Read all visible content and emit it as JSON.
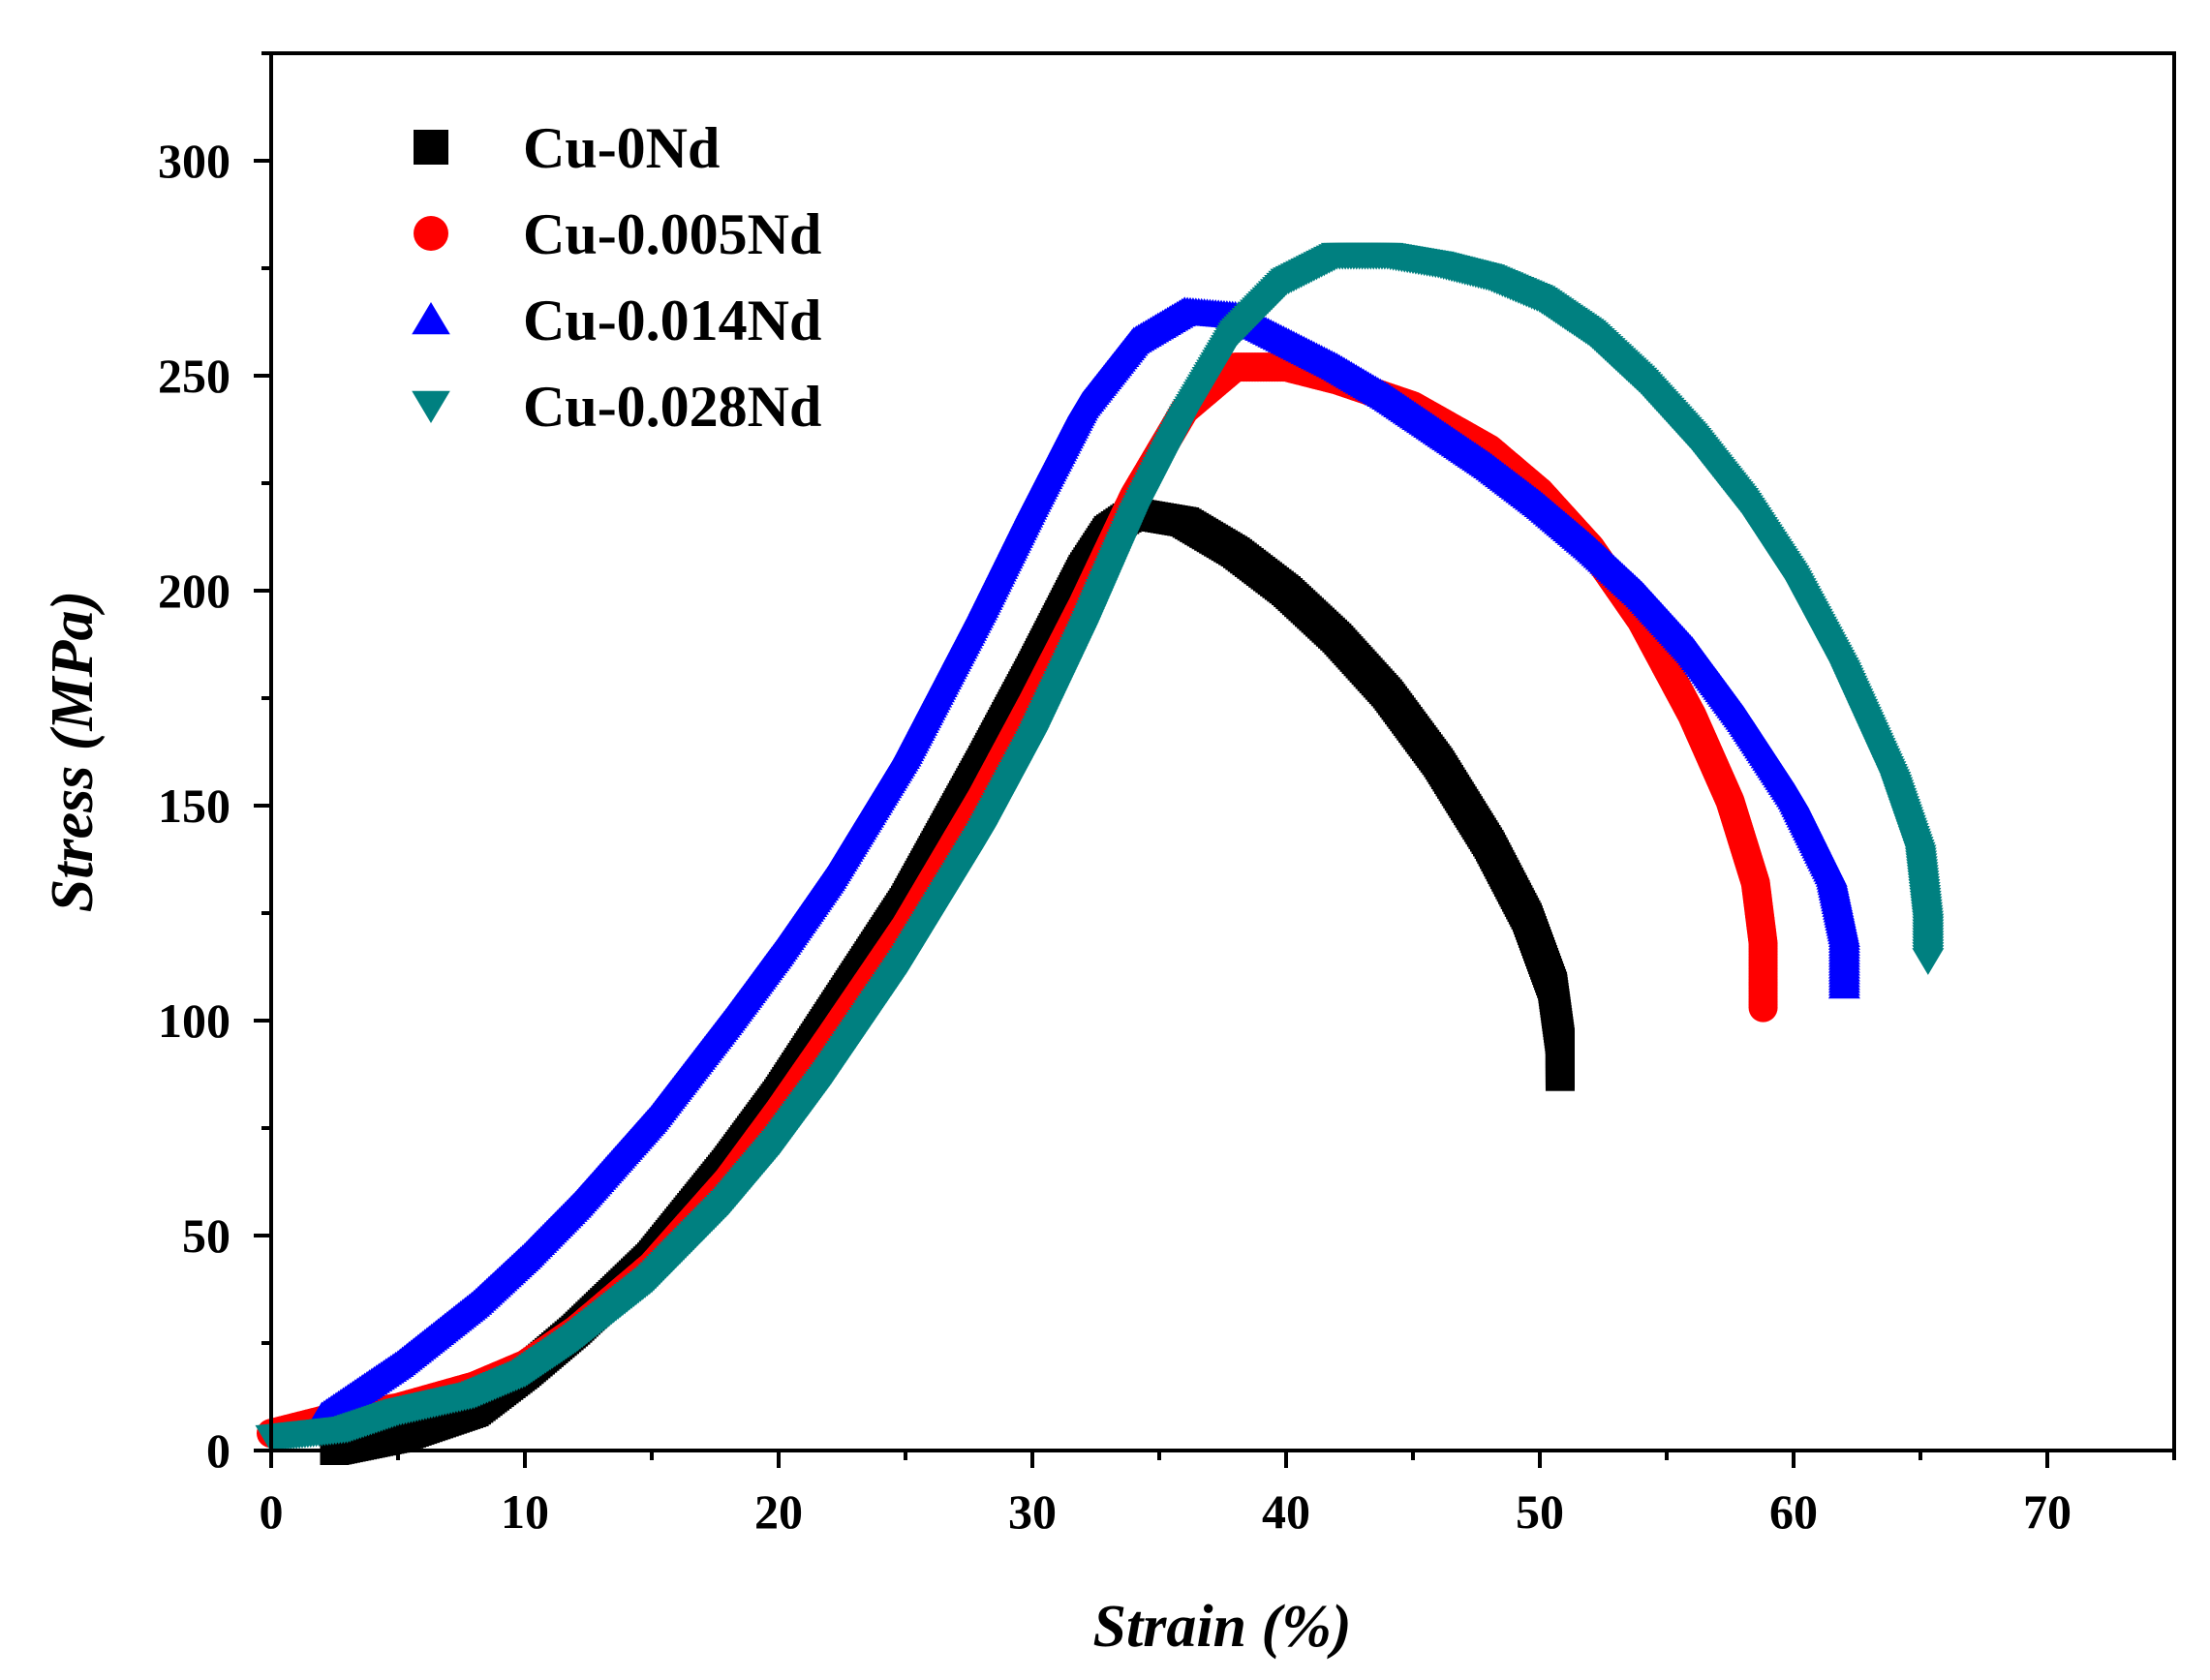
{
  "chart_data": {
    "type": "scatter",
    "title": "",
    "xlabel": "Strain (%)",
    "ylabel": "Stress (MPa)",
    "xlim": [
      0,
      75
    ],
    "ylim": [
      0,
      325
    ],
    "x_ticks": [
      0,
      10,
      20,
      30,
      40,
      50,
      60,
      70
    ],
    "y_ticks": [
      0,
      50,
      100,
      150,
      200,
      250,
      300
    ],
    "grid": false,
    "legend_position": "top-left",
    "series": [
      {
        "name": "Cu-0Nd",
        "marker": "square",
        "color": "#000000",
        "points": [
          [
            2.5,
            0
          ],
          [
            5,
            3
          ],
          [
            8,
            9
          ],
          [
            10,
            18
          ],
          [
            12,
            28
          ],
          [
            15,
            45
          ],
          [
            18,
            67
          ],
          [
            20,
            83
          ],
          [
            22,
            101
          ],
          [
            25,
            128
          ],
          [
            28,
            160
          ],
          [
            30,
            182
          ],
          [
            32,
            205
          ],
          [
            33,
            214
          ],
          [
            34,
            218
          ],
          [
            36,
            216
          ],
          [
            38,
            209
          ],
          [
            40,
            200
          ],
          [
            42,
            189
          ],
          [
            44,
            176
          ],
          [
            46,
            160
          ],
          [
            48,
            141
          ],
          [
            49.5,
            124
          ],
          [
            50.5,
            108
          ],
          [
            50.8,
            95
          ],
          [
            50.8,
            87
          ]
        ]
      },
      {
        "name": "Cu-0.005Nd",
        "marker": "circle",
        "color": "#ff0000",
        "points": [
          [
            0,
            4
          ],
          [
            2,
            7
          ],
          [
            5,
            10
          ],
          [
            8,
            15
          ],
          [
            10,
            20
          ],
          [
            12,
            28
          ],
          [
            15,
            43
          ],
          [
            18,
            63
          ],
          [
            20,
            79
          ],
          [
            22,
            96
          ],
          [
            25,
            122
          ],
          [
            28,
            152
          ],
          [
            30,
            174
          ],
          [
            32,
            197
          ],
          [
            34,
            222
          ],
          [
            36,
            242
          ],
          [
            38,
            252
          ],
          [
            40,
            252
          ],
          [
            42,
            249
          ],
          [
            45,
            243
          ],
          [
            48,
            233
          ],
          [
            50,
            223
          ],
          [
            52,
            210
          ],
          [
            54,
            193
          ],
          [
            56,
            171
          ],
          [
            57.5,
            151
          ],
          [
            58.5,
            132
          ],
          [
            58.8,
            118
          ],
          [
            58.8,
            103
          ]
        ]
      },
      {
        "name": "Cu-0.014Nd",
        "marker": "triangle-up",
        "color": "#0000ff",
        "points": [
          [
            2,
            8
          ],
          [
            5,
            20
          ],
          [
            8,
            34
          ],
          [
            10,
            45
          ],
          [
            12,
            57
          ],
          [
            15,
            77
          ],
          [
            18,
            100
          ],
          [
            20,
            116
          ],
          [
            22,
            133
          ],
          [
            25,
            162
          ],
          [
            28,
            196
          ],
          [
            30,
            220
          ],
          [
            32,
            243
          ],
          [
            34,
            258
          ],
          [
            36,
            265
          ],
          [
            38,
            264
          ],
          [
            40,
            258
          ],
          [
            42,
            252
          ],
          [
            44,
            245
          ],
          [
            46,
            237
          ],
          [
            48,
            229
          ],
          [
            50,
            220
          ],
          [
            52,
            210
          ],
          [
            54,
            199
          ],
          [
            56,
            186
          ],
          [
            58,
            170
          ],
          [
            60,
            152
          ],
          [
            61.5,
            134
          ],
          [
            62,
            120
          ],
          [
            62,
            108
          ]
        ]
      },
      {
        "name": "Cu-0.028Nd",
        "marker": "triangle-down",
        "color": "#008080",
        "points": [
          [
            0,
            3
          ],
          [
            3,
            5
          ],
          [
            5,
            9
          ],
          [
            8,
            13
          ],
          [
            10,
            18
          ],
          [
            12,
            26
          ],
          [
            15,
            40
          ],
          [
            18,
            58
          ],
          [
            20,
            72
          ],
          [
            22,
            88
          ],
          [
            25,
            114
          ],
          [
            28,
            143
          ],
          [
            30,
            165
          ],
          [
            32,
            190
          ],
          [
            34,
            217
          ],
          [
            36,
            240
          ],
          [
            38,
            260
          ],
          [
            40,
            272
          ],
          [
            42,
            278
          ],
          [
            44,
            278
          ],
          [
            46,
            276
          ],
          [
            48,
            273
          ],
          [
            50,
            268
          ],
          [
            52,
            260
          ],
          [
            54,
            249
          ],
          [
            56,
            236
          ],
          [
            58,
            221
          ],
          [
            60,
            203
          ],
          [
            62,
            181
          ],
          [
            64,
            155
          ],
          [
            65,
            138
          ],
          [
            65.3,
            122
          ],
          [
            65.3,
            114
          ]
        ]
      }
    ]
  }
}
